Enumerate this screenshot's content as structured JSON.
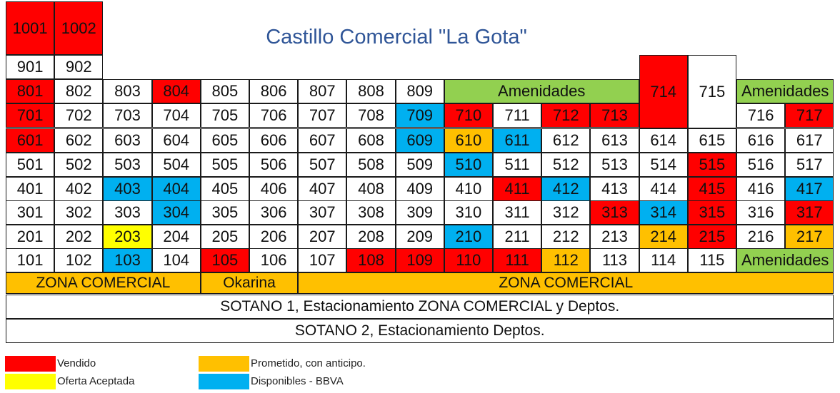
{
  "chart_data": {
    "type": "table",
    "title": "Castillo Comercial \"La Gota\"",
    "colors": {
      "sold": "#ff0000",
      "accepted": "#ffff00",
      "promised": "#ffc000",
      "available_bbva": "#00b0f0",
      "amenities": "#92d050",
      "zone": "#ffc000",
      "white": "#ffffff"
    },
    "rows": [
      {
        "floor": "10",
        "units": [
          {
            "label": "1001",
            "status": "sold"
          },
          {
            "label": "1002",
            "status": "sold"
          }
        ]
      },
      {
        "floor": "9",
        "units": [
          {
            "label": "901",
            "status": "white"
          },
          {
            "label": "902",
            "status": "white"
          }
        ]
      },
      {
        "floor": "8",
        "units": [
          {
            "label": "801",
            "status": "sold"
          },
          {
            "label": "802",
            "status": "white"
          },
          {
            "label": "803",
            "status": "white"
          },
          {
            "label": "804",
            "status": "sold"
          },
          {
            "label": "805",
            "status": "white"
          },
          {
            "label": "806",
            "status": "white"
          },
          {
            "label": "807",
            "status": "white"
          },
          {
            "label": "808",
            "status": "white"
          },
          {
            "label": "809",
            "status": "white"
          },
          {
            "label": "Amenidades",
            "status": "amenities"
          },
          {
            "label": "714",
            "status": "sold"
          },
          {
            "label": "715",
            "status": "white"
          },
          {
            "label": "Amenidades",
            "status": "amenities"
          }
        ]
      },
      {
        "floor": "7",
        "units": [
          {
            "label": "701",
            "status": "sold"
          },
          {
            "label": "702",
            "status": "white"
          },
          {
            "label": "703",
            "status": "white"
          },
          {
            "label": "704",
            "status": "white"
          },
          {
            "label": "705",
            "status": "white"
          },
          {
            "label": "706",
            "status": "white"
          },
          {
            "label": "707",
            "status": "white"
          },
          {
            "label": "708",
            "status": "white"
          },
          {
            "label": "709",
            "status": "available_bbva"
          },
          {
            "label": "710",
            "status": "sold"
          },
          {
            "label": "711",
            "status": "white"
          },
          {
            "label": "712",
            "status": "sold"
          },
          {
            "label": "713",
            "status": "sold"
          },
          {
            "label": "716",
            "status": "white"
          },
          {
            "label": "717",
            "status": "sold"
          }
        ]
      },
      {
        "floor": "6",
        "units": [
          {
            "label": "601",
            "status": "sold"
          },
          {
            "label": "602",
            "status": "white"
          },
          {
            "label": "603",
            "status": "white"
          },
          {
            "label": "604",
            "status": "white"
          },
          {
            "label": "605",
            "status": "white"
          },
          {
            "label": "606",
            "status": "white"
          },
          {
            "label": "607",
            "status": "white"
          },
          {
            "label": "608",
            "status": "white"
          },
          {
            "label": "609",
            "status": "available_bbva"
          },
          {
            "label": "610",
            "status": "promised"
          },
          {
            "label": "611",
            "status": "available_bbva"
          },
          {
            "label": "612",
            "status": "white"
          },
          {
            "label": "613",
            "status": "white"
          },
          {
            "label": "614",
            "status": "white"
          },
          {
            "label": "615",
            "status": "white"
          },
          {
            "label": "616",
            "status": "white"
          },
          {
            "label": "617",
            "status": "white"
          }
        ]
      },
      {
        "floor": "5",
        "units": [
          {
            "label": "501",
            "status": "white"
          },
          {
            "label": "502",
            "status": "white"
          },
          {
            "label": "503",
            "status": "white"
          },
          {
            "label": "504",
            "status": "white"
          },
          {
            "label": "505",
            "status": "white"
          },
          {
            "label": "506",
            "status": "white"
          },
          {
            "label": "507",
            "status": "white"
          },
          {
            "label": "508",
            "status": "white"
          },
          {
            "label": "509",
            "status": "white"
          },
          {
            "label": "510",
            "status": "available_bbva"
          },
          {
            "label": "511",
            "status": "white"
          },
          {
            "label": "512",
            "status": "white"
          },
          {
            "label": "513",
            "status": "white"
          },
          {
            "label": "514",
            "status": "white"
          },
          {
            "label": "515",
            "status": "sold"
          },
          {
            "label": "516",
            "status": "white"
          },
          {
            "label": "517",
            "status": "white"
          }
        ]
      },
      {
        "floor": "4",
        "units": [
          {
            "label": "401",
            "status": "white"
          },
          {
            "label": "402",
            "status": "white"
          },
          {
            "label": "403",
            "status": "available_bbva"
          },
          {
            "label": "404",
            "status": "available_bbva"
          },
          {
            "label": "405",
            "status": "white"
          },
          {
            "label": "406",
            "status": "white"
          },
          {
            "label": "407",
            "status": "white"
          },
          {
            "label": "408",
            "status": "white"
          },
          {
            "label": "409",
            "status": "white"
          },
          {
            "label": "410",
            "status": "white"
          },
          {
            "label": "411",
            "status": "sold"
          },
          {
            "label": "412",
            "status": "available_bbva"
          },
          {
            "label": "413",
            "status": "white"
          },
          {
            "label": "414",
            "status": "white"
          },
          {
            "label": "415",
            "status": "sold"
          },
          {
            "label": "416",
            "status": "white"
          },
          {
            "label": "417",
            "status": "available_bbva"
          }
        ]
      },
      {
        "floor": "3",
        "units": [
          {
            "label": "301",
            "status": "white"
          },
          {
            "label": "302",
            "status": "white"
          },
          {
            "label": "303",
            "status": "white"
          },
          {
            "label": "304",
            "status": "available_bbva"
          },
          {
            "label": "305",
            "status": "white"
          },
          {
            "label": "306",
            "status": "white"
          },
          {
            "label": "307",
            "status": "white"
          },
          {
            "label": "308",
            "status": "white"
          },
          {
            "label": "309",
            "status": "white"
          },
          {
            "label": "310",
            "status": "white"
          },
          {
            "label": "311",
            "status": "white"
          },
          {
            "label": "312",
            "status": "white"
          },
          {
            "label": "313",
            "status": "sold"
          },
          {
            "label": "314",
            "status": "available_bbva"
          },
          {
            "label": "315",
            "status": "sold"
          },
          {
            "label": "316",
            "status": "white"
          },
          {
            "label": "317",
            "status": "sold"
          }
        ]
      },
      {
        "floor": "2",
        "units": [
          {
            "label": "201",
            "status": "white"
          },
          {
            "label": "202",
            "status": "white"
          },
          {
            "label": "203",
            "status": "accepted"
          },
          {
            "label": "204",
            "status": "white"
          },
          {
            "label": "205",
            "status": "white"
          },
          {
            "label": "206",
            "status": "white"
          },
          {
            "label": "207",
            "status": "white"
          },
          {
            "label": "208",
            "status": "white"
          },
          {
            "label": "209",
            "status": "white"
          },
          {
            "label": "210",
            "status": "available_bbva"
          },
          {
            "label": "211",
            "status": "white"
          },
          {
            "label": "212",
            "status": "white"
          },
          {
            "label": "213",
            "status": "white"
          },
          {
            "label": "214",
            "status": "promised"
          },
          {
            "label": "215",
            "status": "sold"
          },
          {
            "label": "216",
            "status": "white"
          },
          {
            "label": "217",
            "status": "promised"
          }
        ]
      },
      {
        "floor": "1",
        "units": [
          {
            "label": "101",
            "status": "white"
          },
          {
            "label": "102",
            "status": "white"
          },
          {
            "label": "103",
            "status": "available_bbva"
          },
          {
            "label": "104",
            "status": "white"
          },
          {
            "label": "105",
            "status": "sold"
          },
          {
            "label": "106",
            "status": "white"
          },
          {
            "label": "107",
            "status": "white"
          },
          {
            "label": "108",
            "status": "sold"
          },
          {
            "label": "109",
            "status": "sold"
          },
          {
            "label": "110",
            "status": "sold"
          },
          {
            "label": "111",
            "status": "sold"
          },
          {
            "label": "112",
            "status": "promised"
          },
          {
            "label": "113",
            "status": "white"
          },
          {
            "label": "114",
            "status": "white"
          },
          {
            "label": "115",
            "status": "white"
          },
          {
            "label": "Amenidades",
            "status": "amenities"
          }
        ]
      }
    ],
    "zones": [
      {
        "label": "ZONA COMERCIAL",
        "status": "zone"
      },
      {
        "label": "Okarina",
        "status": "zone"
      },
      {
        "label": "ZONA COMERCIAL",
        "status": "zone"
      }
    ],
    "basements": [
      "SOTANO 1, Estacionamiento ZONA COMERCIAL y Deptos.",
      "SOTANO 2, Estacionamiento Deptos."
    ],
    "legend": [
      {
        "label": "Vendido",
        "status": "sold"
      },
      {
        "label": "Oferta Aceptada",
        "status": "accepted"
      },
      {
        "label": "Prometido, con anticipo.",
        "status": "promised"
      },
      {
        "label": "Disponibles - BBVA",
        "status": "available_bbva"
      }
    ]
  }
}
